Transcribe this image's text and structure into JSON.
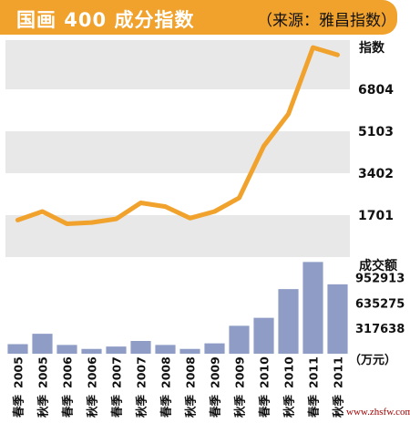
{
  "header": {
    "title": "国画 400 成分指数",
    "source": "（来源：雅昌指数）"
  },
  "watermark": "www.zhsfw.com",
  "colors": {
    "header_bg": "#f0a22c",
    "line": "#f0a22c",
    "bars": "#8e9cc6",
    "band": "#e8e8e8"
  },
  "chart_data": [
    {
      "type": "line",
      "title": "国画 400 成分指数",
      "ylabel": "指数",
      "categories": [
        "2005 春季",
        "2005 秋季",
        "2006 春季",
        "2006 秋季",
        "2007 春季",
        "2007 秋季",
        "2008 春季",
        "2008 秋季",
        "2009 春季",
        "2009 秋季",
        "2010 春季",
        "2010 秋季",
        "2011 春季",
        "2011 秋季"
      ],
      "series": [
        {
          "name": "指数",
          "values": [
            1500,
            1850,
            1350,
            1400,
            1550,
            2200,
            2050,
            1580,
            1850,
            2400,
            4500,
            5800,
            8500,
            8200
          ]
        }
      ],
      "yticks": [
        1701,
        3402,
        5103,
        6804
      ],
      "ylim": [
        0,
        8800
      ],
      "grid_bands": true
    },
    {
      "type": "bar",
      "ylabel": "成交额",
      "unit": "（万元）",
      "categories": [
        "2005 春季",
        "2005 秋季",
        "2006 春季",
        "2006 秋季",
        "2007 春季",
        "2007 秋季",
        "2008 春季",
        "2008 秋季",
        "2009 春季",
        "2009 秋季",
        "2010 春季",
        "2010 秋季",
        "2011 春季",
        "2011 秋季"
      ],
      "series": [
        {
          "name": "成交额",
          "values": [
            120000,
            250000,
            110000,
            60000,
            90000,
            160000,
            110000,
            60000,
            130000,
            350000,
            450000,
            810000,
            1150000,
            870000
          ]
        }
      ],
      "yticks": [
        317638,
        635275,
        952913
      ],
      "ylim": [
        0,
        1200000
      ]
    }
  ],
  "x_axis": {
    "years": [
      "2005",
      "2005",
      "2006",
      "2006",
      "2007",
      "2007",
      "2008",
      "2008",
      "2009",
      "2009",
      "2010",
      "2010",
      "2011",
      "2011"
    ],
    "seasons": [
      "春季",
      "秋季",
      "春季",
      "秋季",
      "春季",
      "秋季",
      "春季",
      "秋季",
      "春季",
      "秋季",
      "春季",
      "秋季",
      "春季",
      "秋季"
    ]
  }
}
